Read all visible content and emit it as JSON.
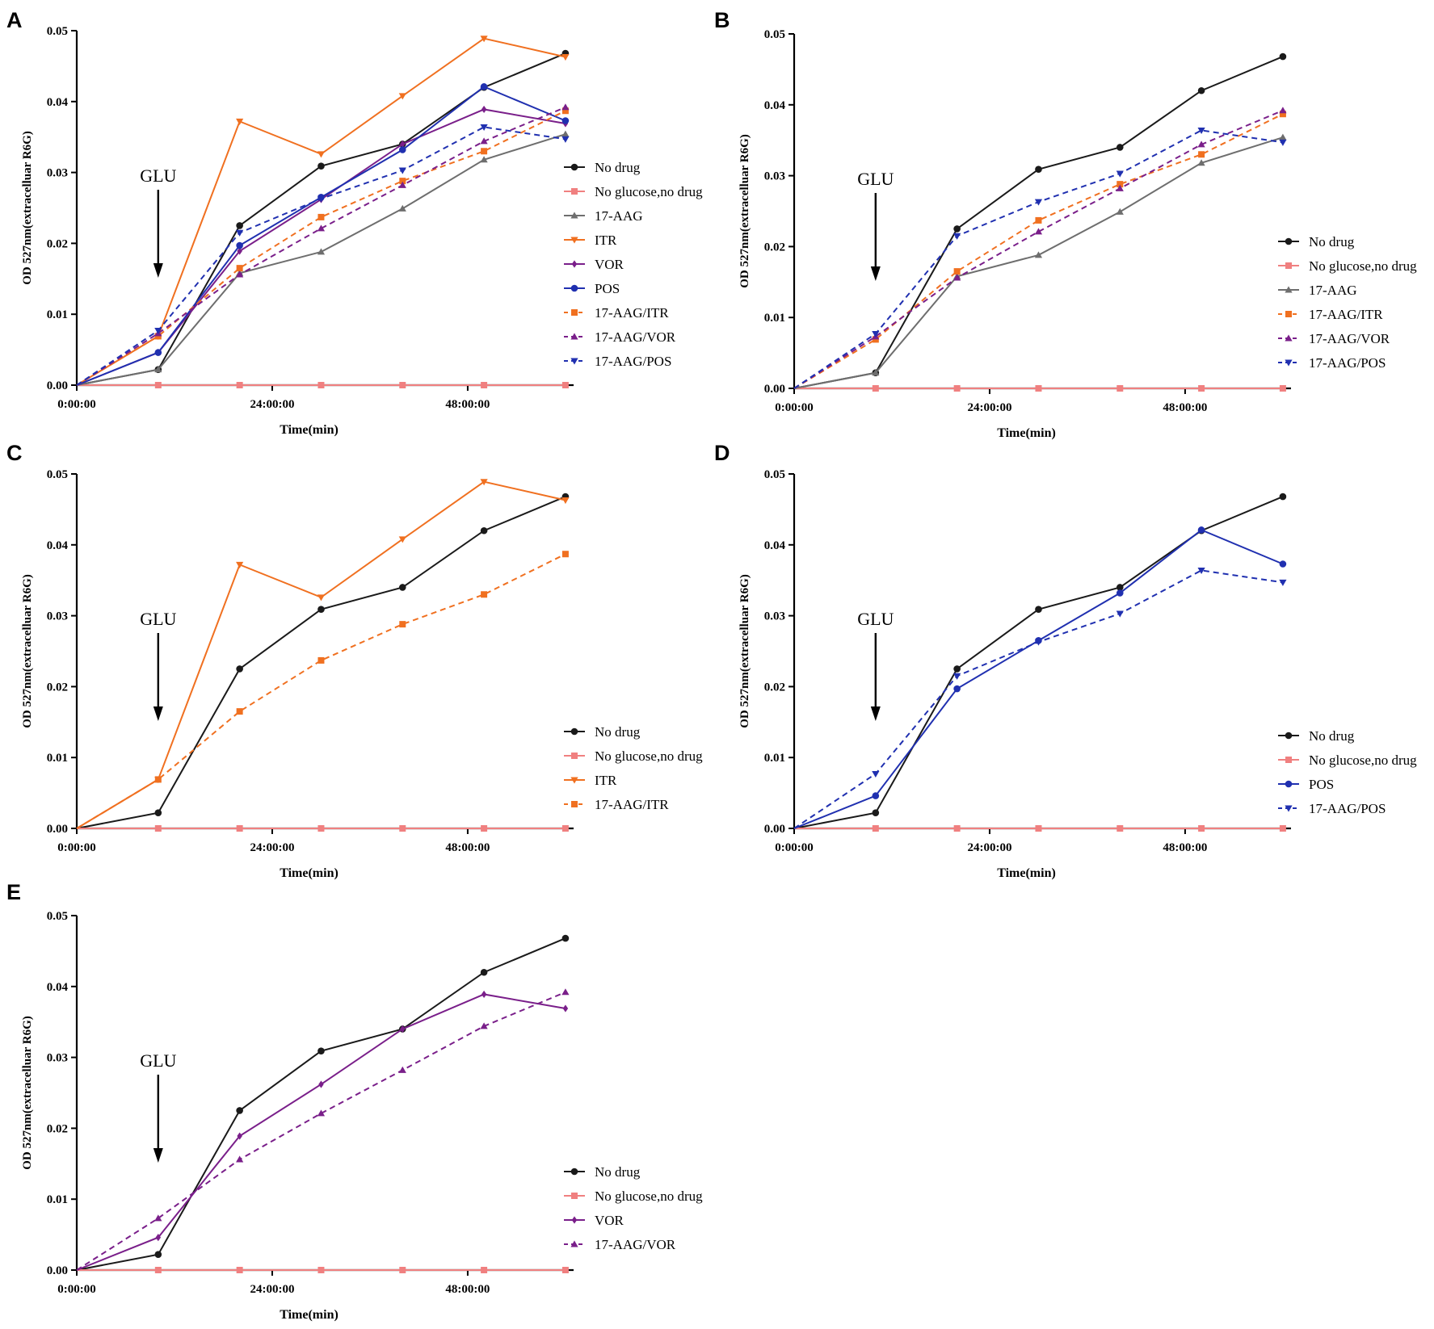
{
  "series_styles": {
    "No drug": {
      "color": "#1a1a1a",
      "dash": "solid",
      "marker": "circle"
    },
    "No glucose,no drug": {
      "color": "#f08080",
      "dash": "solid",
      "marker": "square"
    },
    "17-AAG": {
      "color": "#6e6e6e",
      "dash": "solid",
      "marker": "triangle-up"
    },
    "ITR": {
      "color": "#f07020",
      "dash": "solid",
      "marker": "triangle-down"
    },
    "VOR": {
      "color": "#7a1f8a",
      "dash": "solid",
      "marker": "diamond"
    },
    "POS": {
      "color": "#2030b0",
      "dash": "solid",
      "marker": "circle"
    },
    "17-AAG/ITR": {
      "color": "#f07020",
      "dash": "dashed",
      "marker": "square"
    },
    "17-AAG/VOR": {
      "color": "#7a1f8a",
      "dash": "dashed",
      "marker": "triangle-up"
    },
    "17-AAG/POS": {
      "color": "#2030b0",
      "dash": "dashed",
      "marker": "triangle-down"
    }
  },
  "chart_data": [
    {
      "panel": "A",
      "type": "line",
      "xlabel": "Time(min)",
      "ylabel": "OD 527nm(extracelluar  R6G)",
      "x": [
        0,
        10,
        20,
        30,
        40,
        50,
        60
      ],
      "xlim": [
        0,
        61
      ],
      "x_ticks": [
        0,
        24,
        48
      ],
      "x_tick_labels": [
        "0:00:00",
        "24:00:00",
        "48:00:00"
      ],
      "ylim": [
        0,
        0.05
      ],
      "y_ticks": [
        0,
        0.01,
        0.02,
        0.03,
        0.04,
        0.05
      ],
      "y_tick_labels": [
        "0.00",
        "0.01",
        "0.02",
        "0.03",
        "0.04",
        "0.05"
      ],
      "annotation": {
        "text": "GLU",
        "x": 10
      },
      "legend_position": "right",
      "series": [
        {
          "name": "No drug",
          "values": [
            0,
            0.0022,
            0.0225,
            0.0309,
            0.034,
            0.042,
            0.0468
          ]
        },
        {
          "name": "No glucose,no drug",
          "values": [
            0,
            0,
            0,
            0,
            0,
            0,
            0
          ]
        },
        {
          "name": "17-AAG",
          "values": [
            0,
            0.0022,
            0.0158,
            0.0188,
            0.0249,
            0.0318,
            0.0354
          ]
        },
        {
          "name": "ITR",
          "values": [
            0,
            0.0069,
            0.0372,
            0.0326,
            0.0408,
            0.0489,
            0.0463
          ]
        },
        {
          "name": "VOR",
          "values": [
            0,
            0.0046,
            0.0189,
            0.0262,
            0.034,
            0.0389,
            0.0369
          ]
        },
        {
          "name": "POS",
          "values": [
            0,
            0.0046,
            0.0197,
            0.0265,
            0.0332,
            0.0421,
            0.0373
          ]
        },
        {
          "name": "17-AAG/ITR",
          "values": [
            0,
            0.0069,
            0.0165,
            0.0237,
            0.0288,
            0.033,
            0.0387
          ]
        },
        {
          "name": "17-AAG/VOR",
          "values": [
            0,
            0.0073,
            0.0156,
            0.0221,
            0.0282,
            0.0344,
            0.0392
          ]
        },
        {
          "name": "17-AAG/POS",
          "values": [
            0,
            0.0077,
            0.0215,
            0.0263,
            0.0303,
            0.0364,
            0.0347
          ]
        }
      ]
    },
    {
      "panel": "B",
      "type": "line",
      "xlabel": "Time(min)",
      "ylabel": "OD 527nm(extracelluar  R6G)",
      "x": [
        0,
        10,
        20,
        30,
        40,
        50,
        60
      ],
      "xlim": [
        0,
        61
      ],
      "x_ticks": [
        0,
        24,
        48
      ],
      "x_tick_labels": [
        "0:00:00",
        "24:00:00",
        "48:00:00"
      ],
      "ylim": [
        0,
        0.05
      ],
      "y_ticks": [
        0,
        0.01,
        0.02,
        0.03,
        0.04,
        0.05
      ],
      "y_tick_labels": [
        "0.00",
        "0.01",
        "0.02",
        "0.03",
        "0.04",
        "0.05"
      ],
      "annotation": {
        "text": "GLU",
        "x": 10
      },
      "legend_position": "right",
      "series": [
        {
          "name": "No drug",
          "values": [
            0,
            0.0022,
            0.0225,
            0.0309,
            0.034,
            0.042,
            0.0468
          ]
        },
        {
          "name": "No glucose,no drug",
          "values": [
            0,
            0,
            0,
            0,
            0,
            0,
            0
          ]
        },
        {
          "name": "17-AAG",
          "values": [
            0,
            0.0022,
            0.0158,
            0.0188,
            0.0249,
            0.0318,
            0.0354
          ]
        },
        {
          "name": "17-AAG/ITR",
          "values": [
            0,
            0.0069,
            0.0165,
            0.0237,
            0.0288,
            0.033,
            0.0387
          ]
        },
        {
          "name": "17-AAG/VOR",
          "values": [
            0,
            0.0073,
            0.0156,
            0.0221,
            0.0282,
            0.0344,
            0.0392
          ]
        },
        {
          "name": "17-AAG/POS",
          "values": [
            0,
            0.0077,
            0.0215,
            0.0263,
            0.0303,
            0.0364,
            0.0347
          ]
        }
      ]
    },
    {
      "panel": "C",
      "type": "line",
      "xlabel": "Time(min)",
      "ylabel": "OD 527nm(extracelluar  R6G)",
      "x": [
        0,
        10,
        20,
        30,
        40,
        50,
        60
      ],
      "xlim": [
        0,
        61
      ],
      "x_ticks": [
        0,
        24,
        48
      ],
      "x_tick_labels": [
        "0:00:00",
        "24:00:00",
        "48:00:00"
      ],
      "ylim": [
        0,
        0.05
      ],
      "y_ticks": [
        0,
        0.01,
        0.02,
        0.03,
        0.04,
        0.05
      ],
      "y_tick_labels": [
        "0.00",
        "0.01",
        "0.02",
        "0.03",
        "0.04",
        "0.05"
      ],
      "annotation": {
        "text": "GLU",
        "x": 10
      },
      "legend_position": "right",
      "series": [
        {
          "name": "No drug",
          "values": [
            0,
            0.0022,
            0.0225,
            0.0309,
            0.034,
            0.042,
            0.0468
          ]
        },
        {
          "name": "No glucose,no drug",
          "values": [
            0,
            0,
            0,
            0,
            0,
            0,
            0
          ]
        },
        {
          "name": "ITR",
          "values": [
            0,
            0.0069,
            0.0372,
            0.0326,
            0.0408,
            0.0489,
            0.0463
          ]
        },
        {
          "name": "17-AAG/ITR",
          "values": [
            0,
            0.0069,
            0.0165,
            0.0237,
            0.0288,
            0.033,
            0.0387
          ]
        }
      ]
    },
    {
      "panel": "D",
      "type": "line",
      "xlabel": "Time(min)",
      "ylabel": "OD 527nm(extracelluar  R6G)",
      "x": [
        0,
        10,
        20,
        30,
        40,
        50,
        60
      ],
      "xlim": [
        0,
        61
      ],
      "x_ticks": [
        0,
        24,
        48
      ],
      "x_tick_labels": [
        "0:00:00",
        "24:00:00",
        "48:00:00"
      ],
      "ylim": [
        0,
        0.05
      ],
      "y_ticks": [
        0,
        0.01,
        0.02,
        0.03,
        0.04,
        0.05
      ],
      "y_tick_labels": [
        "0.00",
        "0.01",
        "0.02",
        "0.03",
        "0.04",
        "0.05"
      ],
      "annotation": {
        "text": "GLU",
        "x": 10
      },
      "legend_position": "right",
      "series": [
        {
          "name": "No drug",
          "values": [
            0,
            0.0022,
            0.0225,
            0.0309,
            0.034,
            0.042,
            0.0468
          ]
        },
        {
          "name": "No glucose,no drug",
          "values": [
            0,
            0,
            0,
            0,
            0,
            0,
            0
          ]
        },
        {
          "name": "POS",
          "values": [
            0,
            0.0046,
            0.0197,
            0.0265,
            0.0332,
            0.0421,
            0.0373
          ]
        },
        {
          "name": "17-AAG/POS",
          "values": [
            0,
            0.0077,
            0.0215,
            0.0263,
            0.0303,
            0.0364,
            0.0347
          ]
        }
      ]
    },
    {
      "panel": "E",
      "type": "line",
      "xlabel": "Time(min)",
      "ylabel": "OD 527nm(extracelluar  R6G)",
      "x": [
        0,
        10,
        20,
        30,
        40,
        50,
        60
      ],
      "xlim": [
        0,
        61
      ],
      "x_ticks": [
        0,
        24,
        48
      ],
      "x_tick_labels": [
        "0:00:00",
        "24:00:00",
        "48:00:00"
      ],
      "ylim": [
        0,
        0.05
      ],
      "y_ticks": [
        0,
        0.01,
        0.02,
        0.03,
        0.04,
        0.05
      ],
      "y_tick_labels": [
        "0.00",
        "0.01",
        "0.02",
        "0.03",
        "0.04",
        "0.05"
      ],
      "annotation": {
        "text": "GLU",
        "x": 10
      },
      "legend_position": "right",
      "series": [
        {
          "name": "No drug",
          "values": [
            0,
            0.0022,
            0.0225,
            0.0309,
            0.034,
            0.042,
            0.0468
          ]
        },
        {
          "name": "No glucose,no drug",
          "values": [
            0,
            0,
            0,
            0,
            0,
            0,
            0
          ]
        },
        {
          "name": "VOR",
          "values": [
            0,
            0.0046,
            0.0189,
            0.0262,
            0.034,
            0.0389,
            0.0369
          ]
        },
        {
          "name": "17-AAG/VOR",
          "values": [
            0,
            0.0073,
            0.0156,
            0.0221,
            0.0282,
            0.0344,
            0.0392
          ]
        }
      ]
    }
  ]
}
